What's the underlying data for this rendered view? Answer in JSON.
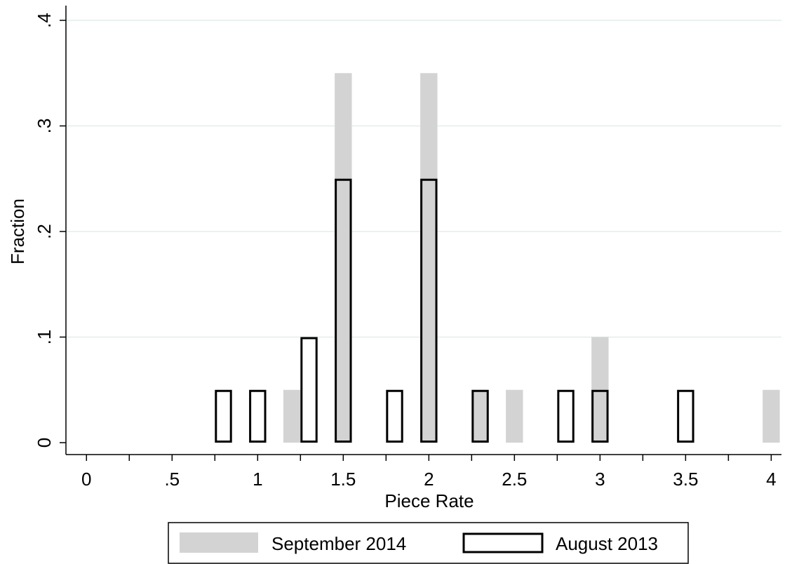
{
  "chart_data": {
    "type": "bar",
    "xlabel": "Piece Rate",
    "ylabel": "Fraction",
    "xlim": [
      -0.12,
      4.06
    ],
    "ylim": [
      0,
      0.4
    ],
    "x_ticks": [
      {
        "value": 0,
        "label": "0"
      },
      {
        "value": 0.5,
        "label": ".5"
      },
      {
        "value": 1,
        "label": "1"
      },
      {
        "value": 1.5,
        "label": "1.5"
      },
      {
        "value": 2,
        "label": "2"
      },
      {
        "value": 2.5,
        "label": "2.5"
      },
      {
        "value": 3,
        "label": "3"
      },
      {
        "value": 3.5,
        "label": "3.5"
      },
      {
        "value": 4,
        "label": "4"
      }
    ],
    "x_minor_ticks": [
      0.25,
      0.75,
      1.25,
      1.75,
      2.25,
      2.75,
      3.25,
      3.75
    ],
    "y_ticks": [
      {
        "value": 0,
        "label": "0"
      },
      {
        "value": 0.1,
        "label": ".1"
      },
      {
        "value": 0.2,
        "label": ".2"
      },
      {
        "value": 0.3,
        "label": ".3"
      },
      {
        "value": 0.4,
        "label": ".4"
      }
    ],
    "grid": true,
    "bar_width": 0.1,
    "legend_position": "bottom",
    "series": [
      {
        "name": "September 2014",
        "style": "filled",
        "color": "#d3d3d3",
        "points": [
          {
            "x": 1.2,
            "y": 0.05
          },
          {
            "x": 1.5,
            "y": 0.35
          },
          {
            "x": 2.0,
            "y": 0.35
          },
          {
            "x": 2.3,
            "y": 0.05
          },
          {
            "x": 2.5,
            "y": 0.05
          },
          {
            "x": 3.0,
            "y": 0.1
          },
          {
            "x": 4.0,
            "y": 0.05
          }
        ]
      },
      {
        "name": "August 2013",
        "style": "outline",
        "color": "#000000",
        "points": [
          {
            "x": 0.8,
            "y": 0.05
          },
          {
            "x": 1.0,
            "y": 0.05
          },
          {
            "x": 1.3,
            "y": 0.1
          },
          {
            "x": 1.5,
            "y": 0.25
          },
          {
            "x": 1.8,
            "y": 0.05
          },
          {
            "x": 2.0,
            "y": 0.25
          },
          {
            "x": 2.3,
            "y": 0.05
          },
          {
            "x": 2.8,
            "y": 0.05
          },
          {
            "x": 3.0,
            "y": 0.05
          },
          {
            "x": 3.5,
            "y": 0.05
          }
        ]
      }
    ]
  }
}
